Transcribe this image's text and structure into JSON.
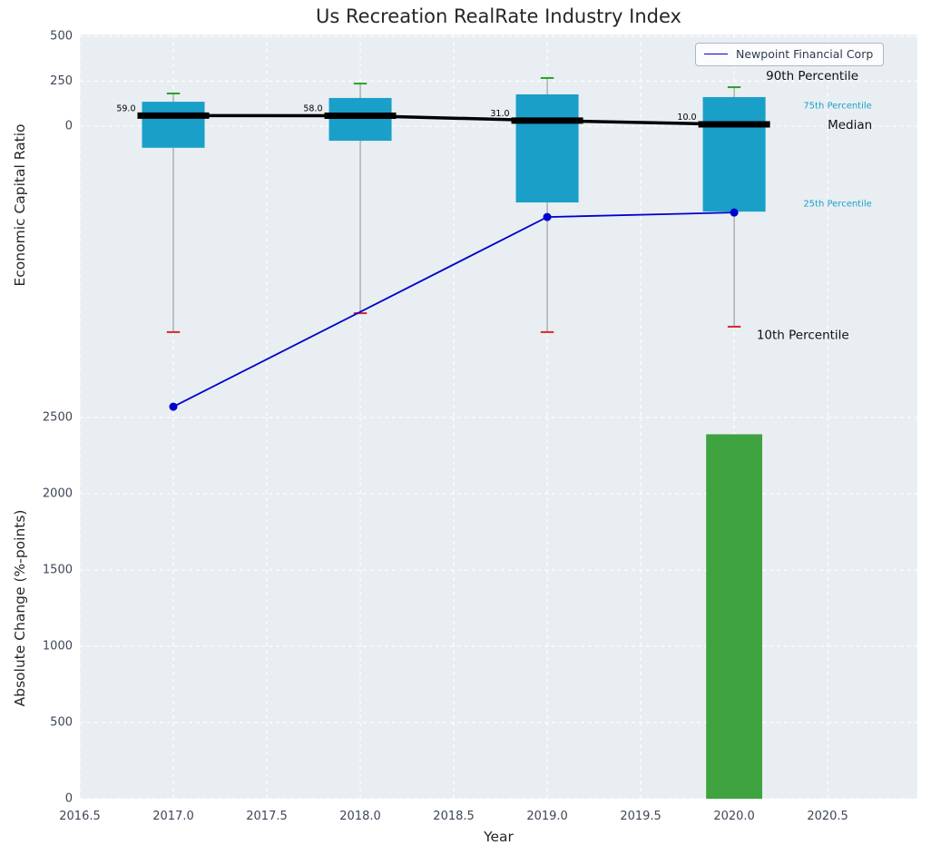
{
  "figure": {
    "title": "Us Recreation RealRate Industry Index",
    "xlabel": "Year",
    "ylabel_top": "Economic Capital Ratio",
    "ylabel_bottom": "Absolute Change (%-points)",
    "legend": {
      "label": "Newpoint Financial Corp",
      "color": "#0000cd"
    }
  },
  "chart_data": [
    {
      "type": "boxplot",
      "panel": "top",
      "title": "Us Recreation RealRate Industry Index",
      "ylabel": "Economic Capital Ratio",
      "xlim": [
        2016.5,
        2020.98
      ],
      "ylim": [
        -1620,
        510
      ],
      "yticks": [
        {
          "v": 0,
          "label": "0"
        },
        {
          "v": 250,
          "label": "250"
        },
        {
          "v": 500,
          "label": "500"
        }
      ],
      "grid": true,
      "legend_position": "upper right",
      "box_width": 0.335,
      "cap_width": 0.07,
      "colors": {
        "box": "#1a9fc9",
        "median": "#000000",
        "whisker": "#8f8f8f",
        "cap_90": "#2ca02c",
        "cap_10": "#d62728",
        "series": "#0000cd",
        "plot_background": "#e9eef2"
      },
      "boxes": [
        {
          "x": 2017,
          "p10": -1145,
          "p25": -120,
          "median": 59.0,
          "p75": 136,
          "p90": 182,
          "median_label": "59.0"
        },
        {
          "x": 2018,
          "p10": -1040,
          "p25": -81,
          "median": 58.0,
          "p75": 157,
          "p90": 237,
          "median_label": "58.0"
        },
        {
          "x": 2019,
          "p10": -1145,
          "p25": -424,
          "median": 31.0,
          "p75": 177,
          "p90": 268,
          "median_label": "31.0"
        },
        {
          "x": 2020,
          "p10": -1115,
          "p25": -475,
          "median": 10.0,
          "p75": 162,
          "p90": 217,
          "median_label": "10.0"
        }
      ],
      "series": [
        {
          "name": "Newpoint Financial Corp",
          "color": "#0000cd",
          "marker": "circle",
          "x": [
            2017,
            2019,
            2020
          ],
          "y": [
            -1560,
            -505,
            -480
          ]
        }
      ],
      "annotations": [
        {
          "text": "90th Percentile",
          "x": 2020.17,
          "y": 278,
          "color": "#111111",
          "size": 13.5
        },
        {
          "text": "75th Percentile",
          "x": 2020.37,
          "y": 111,
          "color": "#1a9fc9",
          "size": 10
        },
        {
          "text": "Median",
          "x": 2020.5,
          "y": 5,
          "color": "#111111",
          "size": 13.5
        },
        {
          "text": "25th Percentile",
          "x": 2020.37,
          "y": -434,
          "color": "#1a9fc9",
          "size": 10
        },
        {
          "text": "10th Percentile",
          "x": 2020.12,
          "y": -1162,
          "color": "#111111",
          "size": 13.5
        }
      ]
    },
    {
      "type": "bar",
      "panel": "bottom",
      "ylabel": "Absolute Change (%-points)",
      "xlabel": "Year",
      "xlim": [
        2016.5,
        2020.98
      ],
      "ylim": [
        0,
        2500
      ],
      "grid": true,
      "bar_width": 0.3,
      "yticks": [
        {
          "v": 0,
          "label": "0"
        },
        {
          "v": 500,
          "label": "500"
        },
        {
          "v": 1000,
          "label": "1000"
        },
        {
          "v": 1500,
          "label": "1500"
        },
        {
          "v": 2000,
          "label": "2000"
        },
        {
          "v": 2500,
          "label": "2500"
        }
      ],
      "xticks": [
        {
          "v": 2016.5,
          "label": "2016.5"
        },
        {
          "v": 2017.0,
          "label": "2017.0"
        },
        {
          "v": 2017.5,
          "label": "2017.5"
        },
        {
          "v": 2018.0,
          "label": "2018.0"
        },
        {
          "v": 2018.5,
          "label": "2018.5"
        },
        {
          "v": 2019.0,
          "label": "2019.0"
        },
        {
          "v": 2019.5,
          "label": "2019.5"
        },
        {
          "v": 2020.0,
          "label": "2020.0"
        },
        {
          "v": 2020.5,
          "label": "2020.5"
        }
      ],
      "bars": [
        {
          "x": 2020,
          "value": 2390,
          "color": "#3fa33f"
        }
      ]
    }
  ]
}
